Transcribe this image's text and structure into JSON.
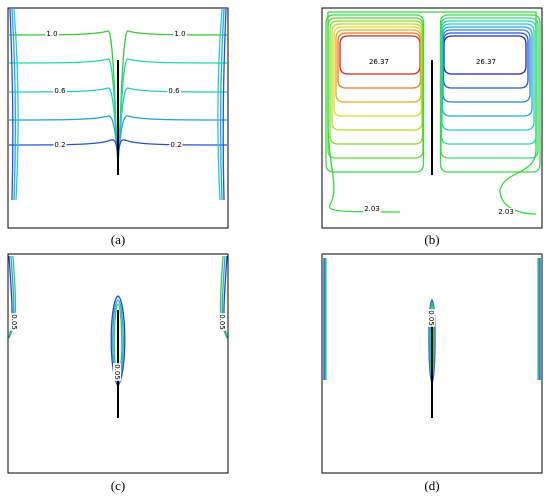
{
  "panels": [
    {
      "label": "(a)",
      "contour_labels": [
        "1.0",
        "1.0",
        "0.6",
        "0.6",
        "0.2",
        "0.2"
      ]
    },
    {
      "label": "(b)",
      "contour_labels": [
        "26.37",
        "26.37",
        "2.03",
        "2.03"
      ]
    },
    {
      "label": "(c)",
      "contour_labels": [
        "0.05",
        "0.05",
        "0.05"
      ]
    },
    {
      "label": "(d)",
      "contour_labels": [
        "0.05"
      ]
    }
  ]
}
